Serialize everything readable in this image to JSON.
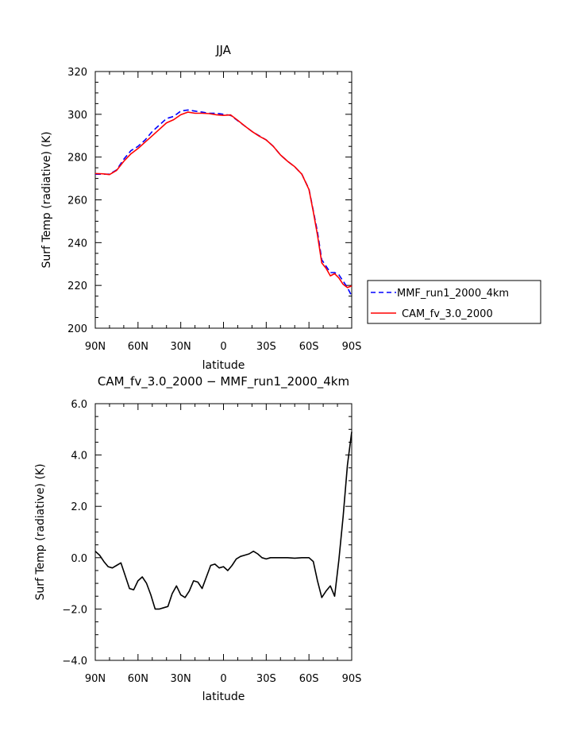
{
  "chart_data": [
    {
      "type": "line",
      "title": "JJA",
      "xlabel": "latitude",
      "ylabel": "Surf Temp (radiative) (K)",
      "xlim": [
        90,
        -90
      ],
      "ylim": [
        200,
        320
      ],
      "xticks": [
        {
          "value": 90,
          "label": "90N"
        },
        {
          "value": 60,
          "label": "60N"
        },
        {
          "value": 30,
          "label": "30N"
        },
        {
          "value": 0,
          "label": "0"
        },
        {
          "value": -30,
          "label": "30S"
        },
        {
          "value": -60,
          "label": "60S"
        },
        {
          "value": -90,
          "label": "90S"
        }
      ],
      "yticks": [
        {
          "value": 200,
          "label": "200"
        },
        {
          "value": 220,
          "label": "220"
        },
        {
          "value": 240,
          "label": "240"
        },
        {
          "value": 260,
          "label": "260"
        },
        {
          "value": 280,
          "label": "280"
        },
        {
          "value": 300,
          "label": "300"
        },
        {
          "value": 320,
          "label": "320"
        }
      ],
      "legend_position": "right",
      "series": [
        {
          "name": "MMF_run1_2000_4km",
          "color": "#0000ff",
          "dash": true,
          "x": [
            90,
            85,
            80,
            75,
            70,
            65,
            60,
            55,
            50,
            45,
            40,
            35,
            30,
            25,
            20,
            15,
            10,
            5,
            0,
            -5,
            -10,
            -15,
            -20,
            -25,
            -30,
            -35,
            -40,
            -45,
            -50,
            -55,
            -60,
            -63,
            -66,
            -69,
            -72,
            -75,
            -78,
            -81,
            -84,
            -87,
            -90
          ],
          "y": [
            272,
            272,
            272,
            274,
            279,
            283,
            285,
            288,
            292,
            295,
            298,
            299,
            301.5,
            302,
            301.5,
            301,
            300.5,
            300.5,
            300,
            299.5,
            297,
            294.5,
            292,
            290,
            288,
            285,
            281,
            278,
            275.5,
            272,
            265,
            255,
            245,
            232,
            229,
            226,
            226,
            225,
            222,
            219,
            215
          ]
        },
        {
          "name": "CAM_fv_3.0_2000",
          "color": "#ff0000",
          "dash": false,
          "x": [
            90,
            85,
            80,
            75,
            70,
            65,
            60,
            55,
            50,
            45,
            40,
            35,
            30,
            25,
            20,
            15,
            10,
            5,
            0,
            -5,
            -10,
            -15,
            -20,
            -25,
            -30,
            -35,
            -40,
            -45,
            -50,
            -55,
            -60,
            -63,
            -66,
            -69,
            -72,
            -75,
            -78,
            -81,
            -84,
            -87,
            -90
          ],
          "y": [
            272.3,
            272.2,
            271.8,
            273.8,
            278,
            281.5,
            284,
            287,
            290,
            293,
            296,
            297.5,
            299.8,
            301,
            300.5,
            300.5,
            300.3,
            299.8,
            299.5,
            299.7,
            297.2,
            294.5,
            292,
            289.8,
            288,
            285,
            281,
            278,
            275.5,
            272,
            264.8,
            254.5,
            243.5,
            230.5,
            228,
            224.5,
            225.5,
            223.5,
            220.5,
            219,
            219.8
          ]
        }
      ]
    },
    {
      "type": "line",
      "title": "CAM_fv_3.0_2000 − MMF_run1_2000_4km",
      "xlabel": "latitude",
      "ylabel": "Surf Temp (radiative) (K)",
      "xlim": [
        90,
        -90
      ],
      "ylim": [
        -4,
        6
      ],
      "xticks": [
        {
          "value": 90,
          "label": "90N"
        },
        {
          "value": 60,
          "label": "60N"
        },
        {
          "value": 30,
          "label": "30N"
        },
        {
          "value": 0,
          "label": "0"
        },
        {
          "value": -30,
          "label": "30S"
        },
        {
          "value": -60,
          "label": "60S"
        },
        {
          "value": -90,
          "label": "90S"
        }
      ],
      "yticks": [
        {
          "value": -4,
          "label": "−4.0"
        },
        {
          "value": -2,
          "label": "−2.0"
        },
        {
          "value": 0,
          "label": "0.0"
        },
        {
          "value": 2,
          "label": "2.0"
        },
        {
          "value": 4,
          "label": "4.0"
        },
        {
          "value": 6,
          "label": "6.0"
        }
      ],
      "series": [
        {
          "color": "#000000",
          "x": [
            90,
            87,
            84,
            81,
            78,
            75,
            72,
            69,
            66,
            63,
            60,
            57,
            54,
            51,
            48,
            45,
            42,
            39,
            36,
            33,
            30,
            27,
            24,
            21,
            18,
            15,
            12,
            9,
            6,
            3,
            0,
            -3,
            -6,
            -9,
            -12,
            -15,
            -18,
            -21,
            -24,
            -27,
            -30,
            -33,
            -36,
            -40,
            -45,
            -50,
            -55,
            -60,
            -63,
            -66,
            -69,
            -72,
            -75,
            -78,
            -81,
            -84,
            -87,
            -90
          ],
          "y": [
            0.25,
            0.1,
            -0.15,
            -0.35,
            -0.4,
            -0.3,
            -0.2,
            -0.7,
            -1.2,
            -1.25,
            -0.9,
            -0.75,
            -1.0,
            -1.45,
            -2.0,
            -2.0,
            -1.95,
            -1.9,
            -1.4,
            -1.1,
            -1.45,
            -1.55,
            -1.3,
            -0.9,
            -0.95,
            -1.2,
            -0.75,
            -0.3,
            -0.25,
            -0.4,
            -0.35,
            -0.5,
            -0.3,
            -0.05,
            0.05,
            0.1,
            0.15,
            0.25,
            0.15,
            0.0,
            -0.05,
            0.0,
            0.0,
            0.0,
            0.0,
            -0.02,
            0.0,
            0.0,
            -0.15,
            -0.9,
            -1.55,
            -1.3,
            -1.1,
            -1.5,
            -0.1,
            1.6,
            3.6,
            4.9
          ]
        }
      ]
    }
  ]
}
